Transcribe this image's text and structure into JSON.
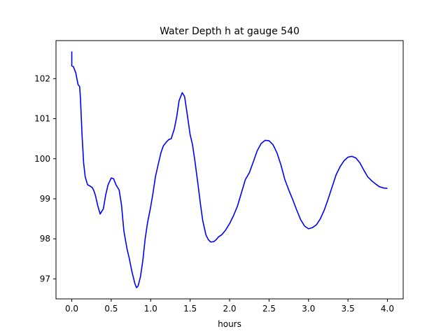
{
  "chart_data": {
    "type": "line",
    "title": "Water Depth h at gauge 540",
    "xlabel": "hours",
    "ylabel": "",
    "xlim": [
      -0.2,
      4.2
    ],
    "ylim": [
      96.5,
      102.95
    ],
    "xticks": [
      0.0,
      0.5,
      1.0,
      1.5,
      2.0,
      2.5,
      3.0,
      3.5,
      4.0
    ],
    "xtick_labels": [
      "0.0",
      "0.5",
      "1.0",
      "1.5",
      "2.0",
      "2.5",
      "3.0",
      "3.5",
      "4.0"
    ],
    "yticks": [
      97,
      98,
      99,
      100,
      101,
      102
    ],
    "ytick_labels": [
      "97",
      "98",
      "99",
      "100",
      "101",
      "102"
    ],
    "grid": false,
    "series": [
      {
        "color": "#0000ff",
        "x": [
          0.0,
          0.0,
          0.0,
          0.02,
          0.05,
          0.08,
          0.1,
          0.11,
          0.13,
          0.15,
          0.17,
          0.2,
          0.23,
          0.26,
          0.28,
          0.3,
          0.33,
          0.36,
          0.4,
          0.43,
          0.46,
          0.5,
          0.53,
          0.56,
          0.6,
          0.63,
          0.66,
          0.7,
          0.73,
          0.76,
          0.8,
          0.82,
          0.84,
          0.87,
          0.9,
          0.93,
          0.96,
          1.0,
          1.03,
          1.06,
          1.1,
          1.13,
          1.16,
          1.2,
          1.23,
          1.26,
          1.3,
          1.33,
          1.36,
          1.4,
          1.43,
          1.46,
          1.5,
          1.53,
          1.56,
          1.6,
          1.63,
          1.66,
          1.7,
          1.73,
          1.76,
          1.8,
          1.83,
          1.86,
          1.9,
          1.95,
          2.0,
          2.05,
          2.1,
          2.15,
          2.2,
          2.25,
          2.3,
          2.35,
          2.4,
          2.45,
          2.5,
          2.55,
          2.6,
          2.65,
          2.7,
          2.75,
          2.8,
          2.85,
          2.9,
          2.95,
          3.0,
          3.05,
          3.1,
          3.15,
          3.2,
          3.25,
          3.3,
          3.35,
          3.4,
          3.45,
          3.5,
          3.55,
          3.6,
          3.65,
          3.7,
          3.75,
          3.8,
          3.85,
          3.9,
          3.95,
          4.0
        ],
        "y": [
          102.68,
          102.5,
          102.32,
          102.3,
          102.15,
          101.85,
          101.8,
          101.5,
          100.6,
          99.9,
          99.55,
          99.35,
          99.32,
          99.28,
          99.2,
          99.08,
          98.82,
          98.62,
          98.75,
          99.1,
          99.35,
          99.52,
          99.5,
          99.35,
          99.22,
          98.85,
          98.2,
          97.75,
          97.5,
          97.2,
          96.88,
          96.78,
          96.82,
          97.05,
          97.45,
          98.0,
          98.4,
          98.8,
          99.15,
          99.55,
          99.9,
          100.15,
          100.32,
          100.42,
          100.48,
          100.5,
          100.75,
          101.05,
          101.45,
          101.65,
          101.55,
          101.15,
          100.6,
          100.35,
          99.95,
          99.35,
          98.88,
          98.45,
          98.1,
          97.98,
          97.92,
          97.93,
          97.98,
          98.05,
          98.1,
          98.22,
          98.38,
          98.58,
          98.82,
          99.15,
          99.48,
          99.65,
          99.92,
          100.2,
          100.38,
          100.46,
          100.45,
          100.35,
          100.15,
          99.85,
          99.48,
          99.22,
          98.98,
          98.72,
          98.48,
          98.32,
          98.25,
          98.28,
          98.35,
          98.5,
          98.72,
          99.0,
          99.3,
          99.6,
          99.8,
          99.95,
          100.04,
          100.06,
          100.02,
          99.9,
          99.72,
          99.55,
          99.45,
          99.37,
          99.3,
          99.27,
          99.26
        ]
      }
    ]
  }
}
